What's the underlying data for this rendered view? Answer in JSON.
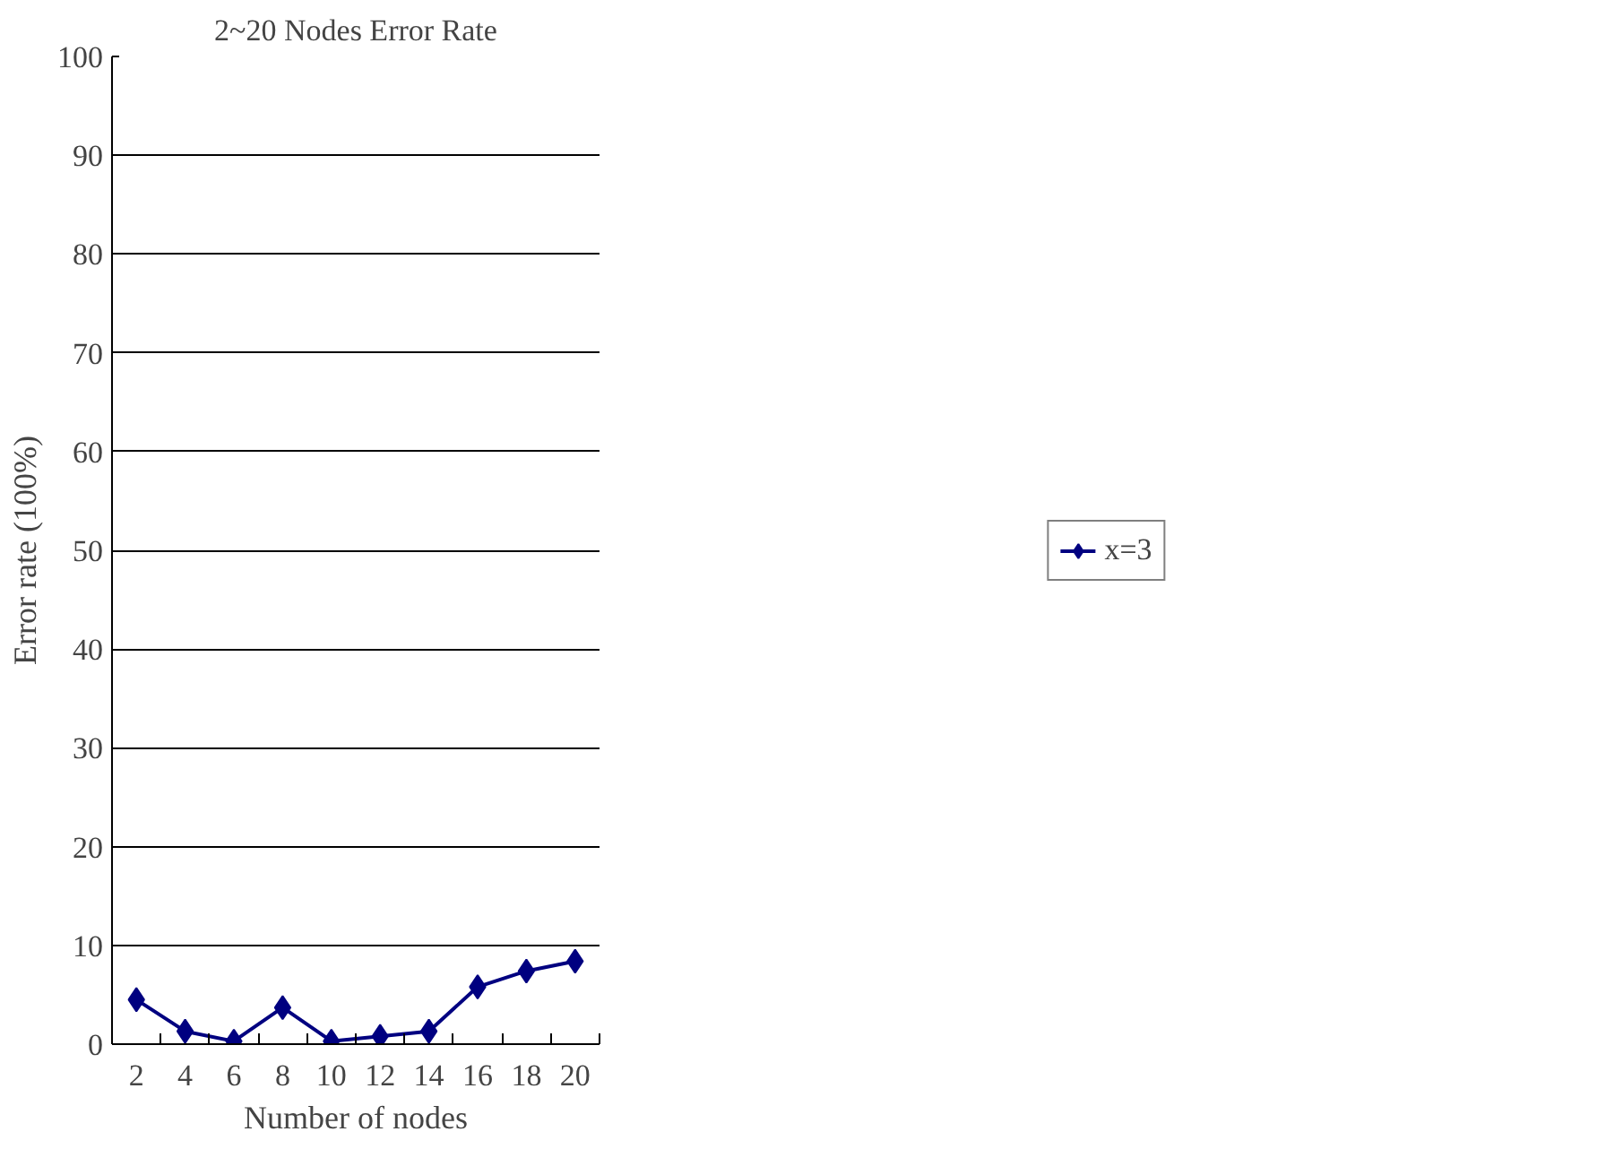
{
  "chart_data": {
    "type": "line",
    "title": "2~20 Nodes Error Rate",
    "xlabel": "Number of nodes",
    "ylabel": "Error rate (100%)",
    "categories": [
      "2",
      "4",
      "6",
      "8",
      "10",
      "12",
      "14",
      "16",
      "18",
      "20"
    ],
    "series": [
      {
        "name": "x=3",
        "color": "#000080",
        "values": [
          4.5,
          1.3,
          0.3,
          3.7,
          0.3,
          0.8,
          1.3,
          5.8,
          7.4,
          8.4
        ]
      }
    ],
    "ylim": [
      0,
      100
    ],
    "yticks": [
      0,
      10,
      20,
      30,
      40,
      50,
      60,
      70,
      80,
      90,
      100
    ],
    "grid": "y",
    "legend": "right",
    "marker": "diamond",
    "line_style": "solid"
  }
}
